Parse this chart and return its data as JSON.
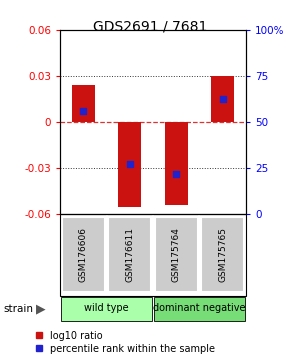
{
  "title": "GDS2691 / 7681",
  "samples": [
    "GSM176606",
    "GSM176611",
    "GSM175764",
    "GSM175765"
  ],
  "log10_ratio": [
    0.024,
    -0.055,
    -0.054,
    0.03
  ],
  "percentile_rank": [
    0.56,
    0.275,
    0.22,
    0.625
  ],
  "ylim": [
    -0.06,
    0.06
  ],
  "yticks_left": [
    -0.06,
    -0.03,
    0,
    0.03,
    0.06
  ],
  "yticks_right": [
    0,
    25,
    50,
    75,
    100
  ],
  "bar_color": "#cc1111",
  "dot_color": "#2222cc",
  "zero_line_color": "#dd3333",
  "grid_color": "#333333",
  "group_labels": [
    "wild type",
    "dominant negative"
  ],
  "group_colors": [
    "#aaffaa",
    "#77dd77"
  ],
  "strain_label": "strain",
  "legend_red": "log10 ratio",
  "legend_blue": "percentile rank within the sample",
  "bg_color": "#ffffff",
  "sample_box_color": "#cccccc",
  "bar_width": 0.5
}
